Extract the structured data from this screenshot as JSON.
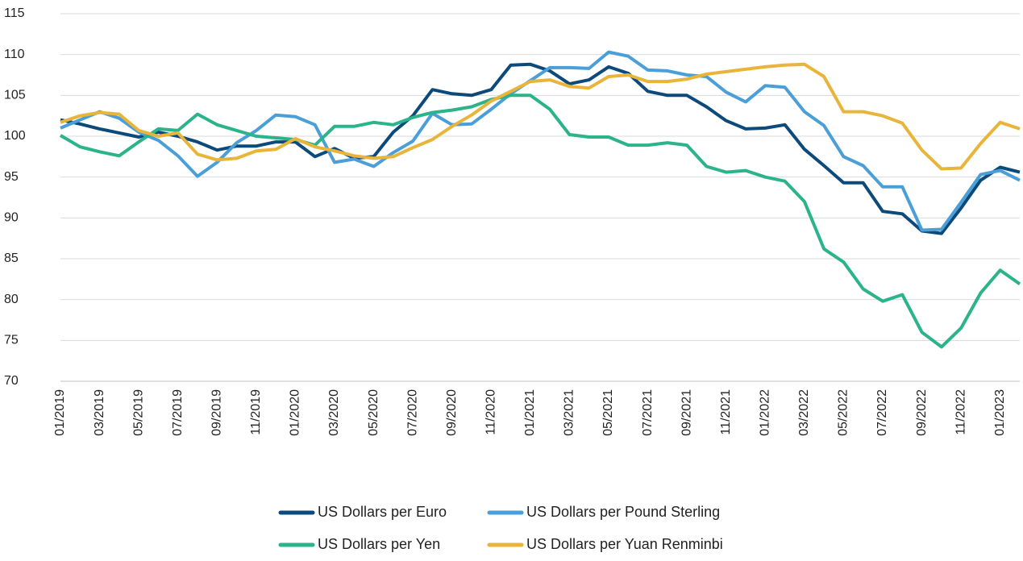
{
  "chart_data": {
    "type": "line",
    "categories": [
      "01/2019",
      null,
      "03/2019",
      null,
      "05/2019",
      null,
      "07/2019",
      null,
      "09/2019",
      null,
      "11/2019",
      null,
      "01/2020",
      null,
      "03/2020",
      null,
      "05/2020",
      null,
      "07/2020",
      null,
      "09/2020",
      null,
      "11/2020",
      null,
      "01/2021",
      null,
      "03/2021",
      null,
      "05/2021",
      null,
      "07/2021",
      null,
      "09/2021",
      null,
      "11/2021",
      null,
      "01/2022",
      null,
      "03/2022",
      null,
      "05/2022",
      null,
      "07/2022",
      null,
      "09/2022",
      null,
      "11/2022",
      null,
      "01/2023",
      null
    ],
    "series": [
      {
        "name": "US Dollars per Euro",
        "color": "#0c4a7b",
        "values": [
          102,
          101.5,
          100.9,
          100.4,
          99.9,
          100.5,
          100.0,
          99.3,
          98.3,
          98.8,
          98.8,
          99.3,
          99.3,
          97.5,
          98.5,
          97.3,
          97.5,
          100.5,
          102.5,
          105.7,
          105.2,
          105.0,
          105.7,
          108.7,
          108.8,
          108.0,
          106.4,
          106.9,
          108.5,
          107.7,
          105.5,
          105.0,
          105.0,
          103.6,
          101.9,
          100.9,
          101.0,
          101.4,
          98.4,
          96.4,
          94.3,
          94.3,
          90.8,
          90.5,
          88.4,
          88.1,
          91.2,
          94.6,
          96.2,
          95.6
        ]
      },
      {
        "name": "US Dollars per Pound Sterling",
        "color": "#4a9fd8",
        "values": [
          101.0,
          102.0,
          103.0,
          102.2,
          100.5,
          99.5,
          97.6,
          95.1,
          96.8,
          99.2,
          100.7,
          102.6,
          102.4,
          101.4,
          96.8,
          97.2,
          96.3,
          98.0,
          99.4,
          102.8,
          101.4,
          101.5,
          103.3,
          105.2,
          106.8,
          108.4,
          108.4,
          108.3,
          110.3,
          109.8,
          108.1,
          108.0,
          107.5,
          107.3,
          105.4,
          104.2,
          106.2,
          106.0,
          103.0,
          101.3,
          97.5,
          96.4,
          93.8,
          93.8,
          88.5,
          88.6,
          91.9,
          95.3,
          95.8,
          94.6
        ]
      },
      {
        "name": "US Dollars per Yen",
        "color": "#2bb38a",
        "values": [
          100.1,
          98.7,
          98.1,
          97.6,
          99.3,
          100.9,
          100.7,
          102.7,
          101.4,
          100.7,
          100.0,
          99.8,
          99.6,
          98.9,
          101.2,
          101.2,
          101.7,
          101.4,
          102.3,
          102.9,
          103.2,
          103.6,
          104.5,
          105.0,
          105.0,
          103.3,
          100.2,
          99.9,
          99.9,
          98.9,
          98.9,
          99.2,
          98.9,
          96.3,
          95.6,
          95.8,
          95.0,
          94.5,
          92.0,
          86.2,
          84.6,
          81.3,
          79.8,
          80.6,
          76.0,
          74.2,
          76.5,
          80.8,
          83.6,
          81.9
        ]
      },
      {
        "name": "US Dollars per Yuan Renminbi",
        "color": "#e8b53a",
        "values": [
          101.7,
          102.5,
          102.9,
          102.7,
          100.7,
          100.0,
          100.4,
          97.8,
          97.1,
          97.3,
          98.2,
          98.4,
          99.7,
          98.7,
          98.2,
          97.6,
          97.3,
          97.5,
          98.6,
          99.6,
          101.2,
          102.6,
          104.3,
          105.5,
          106.7,
          106.9,
          106.1,
          105.9,
          107.3,
          107.5,
          106.7,
          106.7,
          107.0,
          107.6,
          107.9,
          108.2,
          108.5,
          108.7,
          108.8,
          107.3,
          103.0,
          103.0,
          102.5,
          101.6,
          98.3,
          96.0,
          96.1,
          99.1,
          101.7,
          100.9
        ]
      }
    ],
    "ylim": [
      70,
      115
    ],
    "yticks": [
      70,
      75,
      80,
      85,
      90,
      95,
      100,
      105,
      110,
      115
    ],
    "grid": true
  }
}
